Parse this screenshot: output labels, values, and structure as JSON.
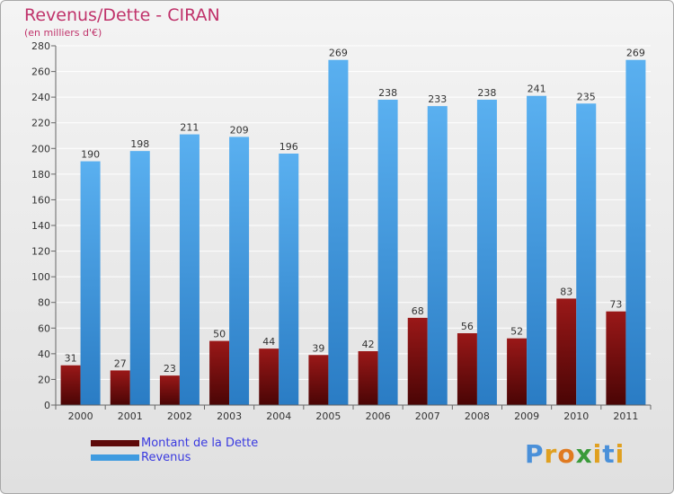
{
  "header": {
    "title": "Revenus/Dette - CIRAN",
    "subtitle": "(en milliers d'€)"
  },
  "chart_data": {
    "type": "bar",
    "categories": [
      "2000",
      "2001",
      "2002",
      "2003",
      "2004",
      "2005",
      "2006",
      "2007",
      "2008",
      "2009",
      "2010",
      "2011"
    ],
    "series": [
      {
        "name": "Montant de la Dette",
        "values": [
          31,
          27,
          23,
          50,
          44,
          39,
          42,
          68,
          56,
          52,
          83,
          73
        ],
        "color": "#7a0f0f"
      },
      {
        "name": "Revenus",
        "values": [
          190,
          198,
          211,
          209,
          196,
          269,
          238,
          233,
          238,
          241,
          235,
          269
        ],
        "color": "#3f9be0"
      }
    ],
    "ylim": [
      0,
      280
    ],
    "yticks": [
      0,
      20,
      40,
      60,
      80,
      100,
      120,
      140,
      160,
      180,
      200,
      220,
      240,
      260,
      280
    ],
    "grid": true,
    "legend_position": "bottom-left"
  },
  "legend": [
    {
      "label": "Montant de la Dette",
      "color": "#5e0a0a"
    },
    {
      "label": "Revenus",
      "color": "#3f9be0"
    }
  ],
  "logo": {
    "letters": [
      "P",
      "r",
      "o",
      "x",
      "i",
      "t",
      "i"
    ],
    "colors": [
      "#4a90d9",
      "#e0a020",
      "#e07a20",
      "#3a9a3a",
      "#e0a020",
      "#4a90d9",
      "#e0a020"
    ]
  }
}
